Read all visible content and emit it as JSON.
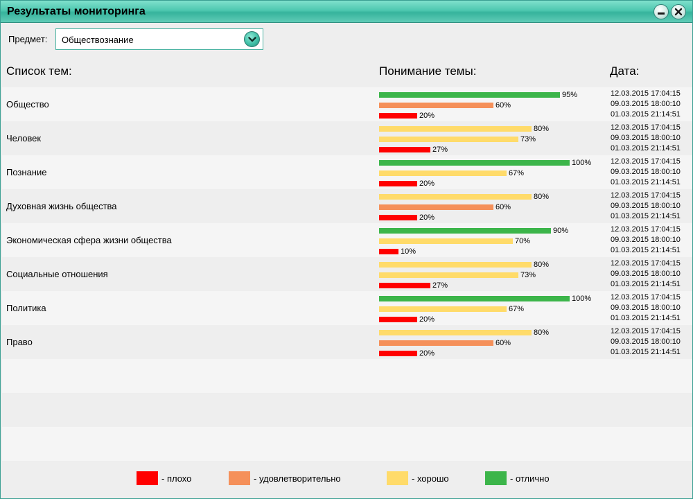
{
  "window": {
    "title": "Результаты мониторинга"
  },
  "subject": {
    "label": "Предмет:",
    "value": "Обществознание"
  },
  "columns": {
    "topics": "Список тем:",
    "understanding": "Понимание темы:",
    "date": "Дата:"
  },
  "colors": {
    "bad": "#ff0000",
    "satisfactory": "#f5905a",
    "good": "#ffdb6a",
    "excellent": "#3cb54a",
    "accent": "#3fbfa6"
  },
  "topics": [
    {
      "name": "Общество",
      "results": [
        {
          "pct": 95,
          "label": "95%",
          "level": "excellent",
          "date": "12.03.2015 17:04:15"
        },
        {
          "pct": 60,
          "label": "60%",
          "level": "satisfactory",
          "date": "09.03.2015 18:00:10"
        },
        {
          "pct": 20,
          "label": "20%",
          "level": "bad",
          "date": "01.03.2015 21:14:51"
        }
      ]
    },
    {
      "name": "Человек",
      "results": [
        {
          "pct": 80,
          "label": "80%",
          "level": "good",
          "date": "12.03.2015 17:04:15"
        },
        {
          "pct": 73,
          "label": "73%",
          "level": "good",
          "date": "09.03.2015 18:00:10"
        },
        {
          "pct": 27,
          "label": "27%",
          "level": "bad",
          "date": "01.03.2015 21:14:51"
        }
      ]
    },
    {
      "name": "Познание",
      "results": [
        {
          "pct": 100,
          "label": "100%",
          "level": "excellent",
          "date": "12.03.2015 17:04:15"
        },
        {
          "pct": 67,
          "label": "67%",
          "level": "good",
          "date": "09.03.2015 18:00:10"
        },
        {
          "pct": 20,
          "label": "20%",
          "level": "bad",
          "date": "01.03.2015 21:14:51"
        }
      ]
    },
    {
      "name": "Духовная жизнь общества",
      "results": [
        {
          "pct": 80,
          "label": "80%",
          "level": "good",
          "date": "12.03.2015 17:04:15"
        },
        {
          "pct": 60,
          "label": "60%",
          "level": "satisfactory",
          "date": "09.03.2015 18:00:10"
        },
        {
          "pct": 20,
          "label": "20%",
          "level": "bad",
          "date": "01.03.2015 21:14:51"
        }
      ]
    },
    {
      "name": "Экономическая сфера жизни общества",
      "results": [
        {
          "pct": 90,
          "label": "90%",
          "level": "excellent",
          "date": "12.03.2015 17:04:15"
        },
        {
          "pct": 70,
          "label": "70%",
          "level": "good",
          "date": "09.03.2015 18:00:10"
        },
        {
          "pct": 10,
          "label": "10%",
          "level": "bad",
          "date": "01.03.2015 21:14:51"
        }
      ]
    },
    {
      "name": "Социальные отношения",
      "results": [
        {
          "pct": 80,
          "label": "80%",
          "level": "good",
          "date": "12.03.2015 17:04:15"
        },
        {
          "pct": 73,
          "label": "73%",
          "level": "good",
          "date": "09.03.2015 18:00:10"
        },
        {
          "pct": 27,
          "label": "27%",
          "level": "bad",
          "date": "01.03.2015 21:14:51"
        }
      ]
    },
    {
      "name": "Политика",
      "results": [
        {
          "pct": 100,
          "label": "100%",
          "level": "excellent",
          "date": "12.03.2015 17:04:15"
        },
        {
          "pct": 67,
          "label": "67%",
          "level": "good",
          "date": "09.03.2015 18:00:10"
        },
        {
          "pct": 20,
          "label": "20%",
          "level": "bad",
          "date": "01.03.2015 21:14:51"
        }
      ]
    },
    {
      "name": "Право",
      "results": [
        {
          "pct": 80,
          "label": "80%",
          "level": "good",
          "date": "12.03.2015 17:04:15"
        },
        {
          "pct": 60,
          "label": "60%",
          "level": "satisfactory",
          "date": "09.03.2015 18:00:10"
        },
        {
          "pct": 20,
          "label": "20%",
          "level": "bad",
          "date": "01.03.2015 21:14:51"
        }
      ]
    }
  ],
  "legend": [
    {
      "level": "bad",
      "label": "- плохо"
    },
    {
      "level": "satisfactory",
      "label": "- удовлетворительно"
    },
    {
      "level": "good",
      "label": "- хорошо"
    },
    {
      "level": "excellent",
      "label": "- отлично"
    }
  ],
  "icons": {
    "minimize": "minimize-icon",
    "close": "close-icon",
    "dropdown": "chevron-down-icon"
  }
}
